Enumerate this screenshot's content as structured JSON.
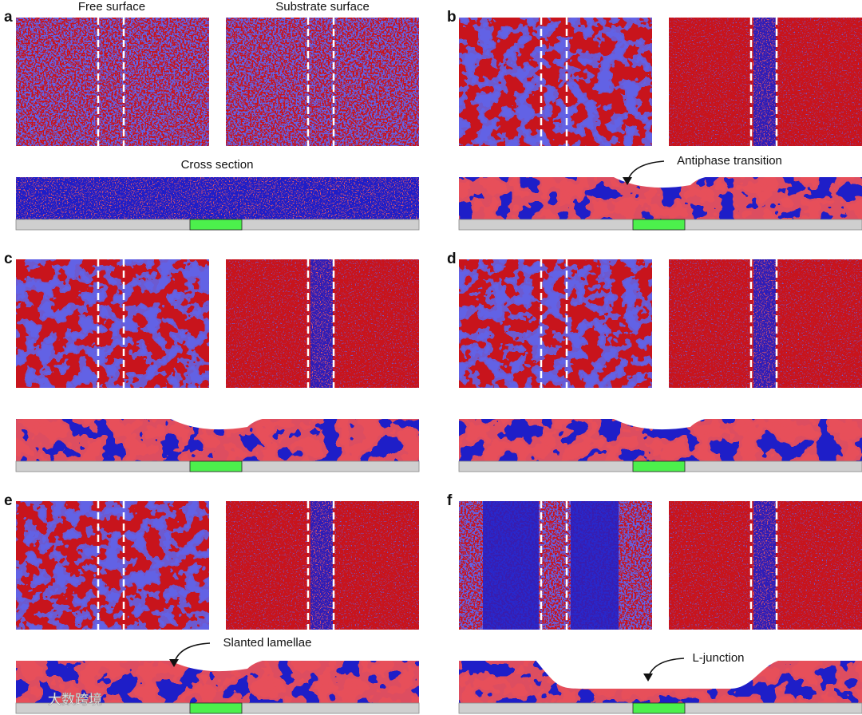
{
  "panel_labels": [
    "a",
    "b",
    "c",
    "d",
    "e",
    "f"
  ],
  "headers": {
    "free": "Free surface",
    "substrate": "Substrate surface",
    "cross": "Cross section"
  },
  "annotations": {
    "antiphase": "Antiphase transition",
    "slanted": "Slanted lamellae",
    "ljunction": "L-junction"
  },
  "watermark": "大数跨境"
}
